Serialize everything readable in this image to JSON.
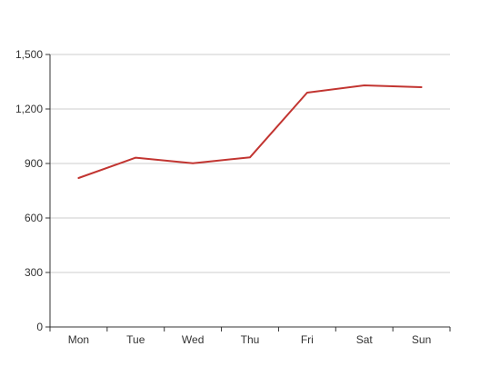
{
  "chart_data": {
    "type": "line",
    "categories": [
      "Mon",
      "Tue",
      "Wed",
      "Thu",
      "Fri",
      "Sat",
      "Sun"
    ],
    "series": [
      {
        "values": [
          820,
          932,
          901,
          934,
          1290,
          1330,
          1320
        ]
      }
    ],
    "ylim": [
      0,
      1500
    ],
    "yticks": [
      0,
      300,
      600,
      900,
      1200,
      1500
    ],
    "ytick_labels": [
      "0",
      "300",
      "600",
      "900",
      "1,200",
      "1,500"
    ],
    "grid": true,
    "colors": {
      "line": "#c23531",
      "grid": "#cccccc",
      "axis": "#333333",
      "text": "#333333"
    }
  }
}
